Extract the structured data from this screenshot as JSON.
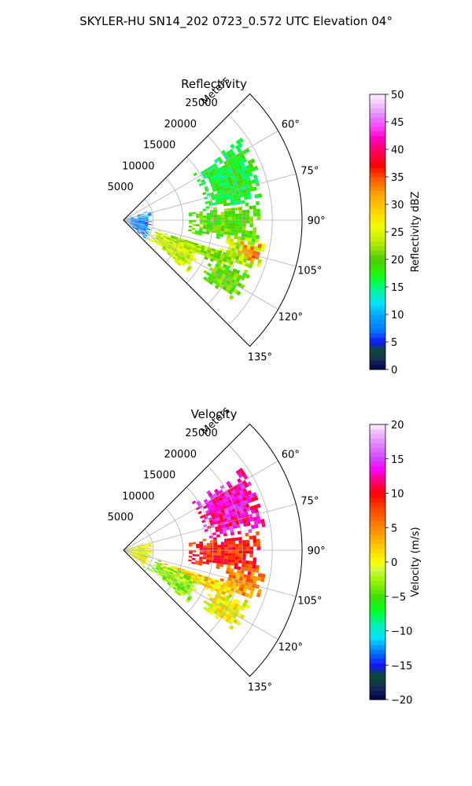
{
  "title": "SKYLER-HU  SN14_202  0723_0.572 UTC Elevation 04°",
  "chart_data": [
    {
      "type": "heatmap",
      "projection": "polar-sector",
      "title": "Reflectivity",
      "radial_label": "Meters",
      "radial_ticks": [
        5000,
        10000,
        15000,
        20000,
        25000
      ],
      "rmax": 30000,
      "azimuth_range": [
        45,
        135
      ],
      "azimuth_ticks": [
        "60°",
        "75°",
        "90°",
        "105°",
        "120°",
        "135°"
      ],
      "colorbar": {
        "label": "Reflectivity dBZ",
        "min": 0,
        "max": 50,
        "ticks": [
          "0",
          "5",
          "10",
          "15",
          "20",
          "25",
          "30",
          "35",
          "40",
          "45",
          "50"
        ]
      },
      "echo_regions": [
        {
          "az": [
            82,
            100
          ],
          "r": [
            11000,
            23000
          ],
          "value": 20
        },
        {
          "az": [
            98,
            110
          ],
          "r": [
            17000,
            24000
          ],
          "value": 24
        },
        {
          "az": [
            106,
            114
          ],
          "r": [
            6000,
            20000
          ],
          "value": 22
        },
        {
          "az": [
            110,
            128
          ],
          "r": [
            5000,
            14000
          ],
          "value": 24
        },
        {
          "az": [
            112,
            126
          ],
          "r": [
            16000,
            23000
          ],
          "value": 20
        },
        {
          "az": [
            100,
            108
          ],
          "r": [
            20000,
            23500
          ],
          "value": 33
        },
        {
          "az": [
            55,
            82
          ],
          "r": [
            14000,
            24000
          ],
          "value": 17
        },
        {
          "az": [
            70,
            130
          ],
          "r": [
            0,
            4500
          ],
          "value": 8
        }
      ],
      "grid": true
    },
    {
      "type": "heatmap",
      "projection": "polar-sector",
      "title": "Velocity",
      "radial_label": "Meters",
      "radial_ticks": [
        5000,
        10000,
        15000,
        20000,
        25000
      ],
      "rmax": 30000,
      "azimuth_range": [
        45,
        135
      ],
      "azimuth_ticks": [
        "60°",
        "75°",
        "90°",
        "105°",
        "120°",
        "135°"
      ],
      "colorbar": {
        "label": "Velocity (m/s)",
        "min": -20,
        "max": 20,
        "ticks": [
          "−20",
          "−15",
          "−10",
          "−5",
          "0",
          "5",
          "10",
          "15",
          "20"
        ]
      },
      "echo_regions": [
        {
          "az": [
            82,
            100
          ],
          "r": [
            11000,
            23000
          ],
          "value": 9
        },
        {
          "az": [
            98,
            110
          ],
          "r": [
            17000,
            24000
          ],
          "value": 5
        },
        {
          "az": [
            106,
            114
          ],
          "r": [
            6000,
            20000
          ],
          "value": 2
        },
        {
          "az": [
            110,
            128
          ],
          "r": [
            5000,
            14000
          ],
          "value": -3
        },
        {
          "az": [
            112,
            126
          ],
          "r": [
            16000,
            23000
          ],
          "value": 0
        },
        {
          "az": [
            55,
            82
          ],
          "r": [
            14000,
            24000
          ],
          "value": 13
        },
        {
          "az": [
            70,
            130
          ],
          "r": [
            0,
            4500
          ],
          "value": 0
        }
      ],
      "grid": true
    }
  ]
}
